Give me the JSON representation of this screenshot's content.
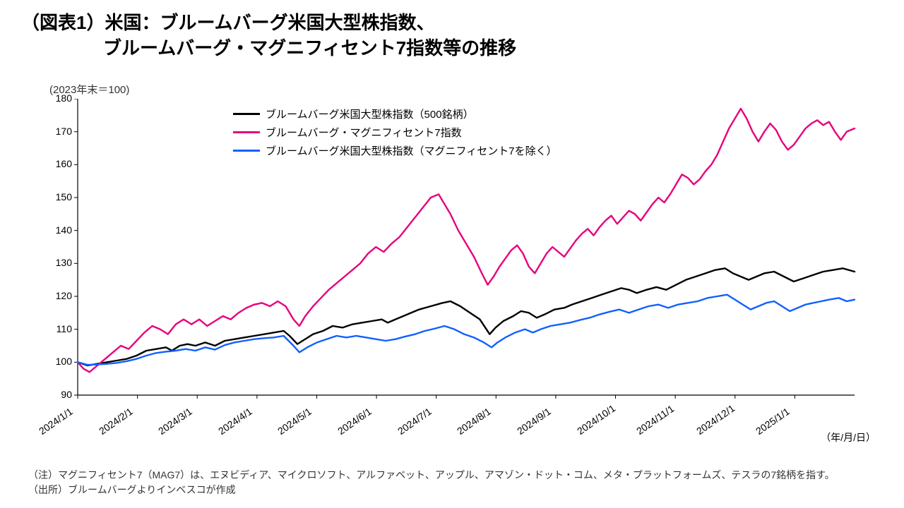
{
  "title_line1": "（図表1）米国：ブルームバーグ米国大型株指数、",
  "title_line2": "ブルームバーグ・マグニフィセント7指数等の推移",
  "normalization_note": "(2023年末＝100)",
  "x_unit_label": "（年/月/日）",
  "footnote_line1": "（注）マグニフィセント7（MAG7）は、エヌビディア、マイクロソフト、アルファベット、アップル、アマゾン・ドット・コム、メタ・プラットフォームズ、テスラの7銘柄を指す。",
  "footnote_line2": "（出所）ブルームバーグよりインベスコが作成",
  "legend": {
    "series1": "ブルームバーグ米国大型株指数（500銘柄）",
    "series2": "ブルームバーグ・マグニフィセント7指数",
    "series3": "ブルームバーグ米国大型株指数（マグニフィセント7を除く）"
  },
  "chart": {
    "type": "line",
    "background_color": "#ffffff",
    "axis_color": "#000000",
    "grid": false,
    "title_fontsize": 26,
    "label_fontsize": 14,
    "legend_fontsize": 15,
    "line_width": 2.4,
    "ylim": [
      90,
      180
    ],
    "ytick_step": 10,
    "yticks": [
      90,
      100,
      110,
      120,
      130,
      140,
      150,
      160,
      170,
      180
    ],
    "xticks": [
      "2024/1/1",
      "2024/2/1",
      "2024/3/1",
      "2024/4/1",
      "2024/5/1",
      "2024/6/1",
      "2024/7/1",
      "2024/8/1",
      "2024/9/1",
      "2024/10/1",
      "2024/11/1",
      "2024/12/1",
      "2025/1/1"
    ],
    "xtick_rotation_deg": -35,
    "x_index_range": [
      0,
      396
    ],
    "series": [
      {
        "key": "series1",
        "color": "#000000",
        "data": [
          [
            0,
            100.0
          ],
          [
            5,
            99.0
          ],
          [
            10,
            99.5
          ],
          [
            15,
            100.0
          ],
          [
            20,
            100.5
          ],
          [
            25,
            101.0
          ],
          [
            30,
            102.0
          ],
          [
            35,
            103.5
          ],
          [
            40,
            104.0
          ],
          [
            45,
            104.5
          ],
          [
            48,
            103.5
          ],
          [
            52,
            105.0
          ],
          [
            56,
            105.5
          ],
          [
            60,
            105.0
          ],
          [
            65,
            106.0
          ],
          [
            70,
            105.0
          ],
          [
            75,
            106.5
          ],
          [
            80,
            107.0
          ],
          [
            85,
            107.5
          ],
          [
            90,
            108.0
          ],
          [
            95,
            108.5
          ],
          [
            100,
            109.0
          ],
          [
            105,
            109.5
          ],
          [
            108,
            108.0
          ],
          [
            112,
            105.5
          ],
          [
            116,
            107.0
          ],
          [
            120,
            108.5
          ],
          [
            125,
            109.5
          ],
          [
            130,
            111.0
          ],
          [
            135,
            110.5
          ],
          [
            140,
            111.5
          ],
          [
            145,
            112.0
          ],
          [
            150,
            112.5
          ],
          [
            155,
            113.0
          ],
          [
            158,
            112.0
          ],
          [
            162,
            113.0
          ],
          [
            168,
            114.5
          ],
          [
            174,
            116.0
          ],
          [
            180,
            117.0
          ],
          [
            186,
            118.0
          ],
          [
            190,
            118.5
          ],
          [
            195,
            117.0
          ],
          [
            200,
            115.0
          ],
          [
            205,
            113.0
          ],
          [
            210,
            108.5
          ],
          [
            213,
            110.5
          ],
          [
            217,
            112.5
          ],
          [
            222,
            114.0
          ],
          [
            226,
            115.5
          ],
          [
            230,
            115.0
          ],
          [
            234,
            113.5
          ],
          [
            238,
            114.5
          ],
          [
            243,
            116.0
          ],
          [
            248,
            116.5
          ],
          [
            252,
            117.5
          ],
          [
            257,
            118.5
          ],
          [
            262,
            119.5
          ],
          [
            267,
            120.5
          ],
          [
            272,
            121.5
          ],
          [
            277,
            122.5
          ],
          [
            281,
            122.0
          ],
          [
            285,
            121.0
          ],
          [
            290,
            122.0
          ],
          [
            295,
            122.8
          ],
          [
            300,
            122.0
          ],
          [
            305,
            123.5
          ],
          [
            310,
            125.0
          ],
          [
            315,
            126.0
          ],
          [
            320,
            127.0
          ],
          [
            325,
            128.0
          ],
          [
            330,
            128.5
          ],
          [
            334,
            127.0
          ],
          [
            338,
            126.0
          ],
          [
            342,
            125.0
          ],
          [
            346,
            126.0
          ],
          [
            350,
            127.0
          ],
          [
            355,
            127.5
          ],
          [
            360,
            126.0
          ],
          [
            365,
            124.5
          ],
          [
            370,
            125.5
          ],
          [
            375,
            126.5
          ],
          [
            380,
            127.5
          ],
          [
            385,
            128.0
          ],
          [
            390,
            128.5
          ],
          [
            396,
            127.5
          ]
        ]
      },
      {
        "key": "series2",
        "color": "#e6007e",
        "data": [
          [
            0,
            100.0
          ],
          [
            3,
            98.0
          ],
          [
            6,
            97.0
          ],
          [
            10,
            99.0
          ],
          [
            14,
            101.0
          ],
          [
            18,
            103.0
          ],
          [
            22,
            105.0
          ],
          [
            26,
            104.0
          ],
          [
            30,
            106.5
          ],
          [
            34,
            109.0
          ],
          [
            38,
            111.0
          ],
          [
            42,
            110.0
          ],
          [
            46,
            108.5
          ],
          [
            50,
            111.5
          ],
          [
            54,
            113.0
          ],
          [
            58,
            111.5
          ],
          [
            62,
            113.0
          ],
          [
            66,
            111.0
          ],
          [
            70,
            112.5
          ],
          [
            74,
            114.0
          ],
          [
            78,
            113.0
          ],
          [
            82,
            115.0
          ],
          [
            86,
            116.5
          ],
          [
            90,
            117.5
          ],
          [
            94,
            118.0
          ],
          [
            98,
            117.0
          ],
          [
            102,
            118.5
          ],
          [
            106,
            117.0
          ],
          [
            110,
            113.0
          ],
          [
            113,
            111.0
          ],
          [
            116,
            114.0
          ],
          [
            120,
            117.0
          ],
          [
            124,
            119.5
          ],
          [
            128,
            122.0
          ],
          [
            132,
            124.0
          ],
          [
            136,
            126.0
          ],
          [
            140,
            128.0
          ],
          [
            144,
            130.0
          ],
          [
            148,
            133.0
          ],
          [
            152,
            135.0
          ],
          [
            156,
            133.5
          ],
          [
            160,
            136.0
          ],
          [
            164,
            138.0
          ],
          [
            168,
            141.0
          ],
          [
            172,
            144.0
          ],
          [
            176,
            147.0
          ],
          [
            180,
            150.0
          ],
          [
            184,
            151.0
          ],
          [
            187,
            148.0
          ],
          [
            190,
            145.0
          ],
          [
            194,
            140.0
          ],
          [
            198,
            136.0
          ],
          [
            202,
            132.0
          ],
          [
            206,
            127.0
          ],
          [
            209,
            123.5
          ],
          [
            212,
            126.0
          ],
          [
            215,
            129.0
          ],
          [
            218,
            131.5
          ],
          [
            221,
            134.0
          ],
          [
            224,
            135.5
          ],
          [
            227,
            133.0
          ],
          [
            230,
            129.0
          ],
          [
            233,
            127.0
          ],
          [
            236,
            130.0
          ],
          [
            239,
            133.0
          ],
          [
            242,
            135.0
          ],
          [
            245,
            133.5
          ],
          [
            248,
            132.0
          ],
          [
            251,
            134.5
          ],
          [
            254,
            137.0
          ],
          [
            257,
            139.0
          ],
          [
            260,
            140.5
          ],
          [
            263,
            138.5
          ],
          [
            266,
            141.0
          ],
          [
            269,
            143.0
          ],
          [
            272,
            144.5
          ],
          [
            275,
            142.0
          ],
          [
            278,
            144.0
          ],
          [
            281,
            146.0
          ],
          [
            284,
            145.0
          ],
          [
            287,
            143.0
          ],
          [
            290,
            145.5
          ],
          [
            293,
            148.0
          ],
          [
            296,
            150.0
          ],
          [
            299,
            148.5
          ],
          [
            302,
            151.0
          ],
          [
            305,
            154.0
          ],
          [
            308,
            157.0
          ],
          [
            311,
            156.0
          ],
          [
            314,
            154.0
          ],
          [
            317,
            155.5
          ],
          [
            320,
            158.0
          ],
          [
            323,
            160.0
          ],
          [
            326,
            163.0
          ],
          [
            329,
            167.0
          ],
          [
            332,
            171.0
          ],
          [
            335,
            174.0
          ],
          [
            338,
            177.0
          ],
          [
            341,
            174.0
          ],
          [
            344,
            170.0
          ],
          [
            347,
            167.0
          ],
          [
            350,
            170.0
          ],
          [
            353,
            172.5
          ],
          [
            356,
            170.5
          ],
          [
            359,
            167.0
          ],
          [
            362,
            164.5
          ],
          [
            365,
            166.0
          ],
          [
            368,
            168.5
          ],
          [
            371,
            171.0
          ],
          [
            374,
            172.5
          ],
          [
            377,
            173.5
          ],
          [
            380,
            172.0
          ],
          [
            383,
            173.0
          ],
          [
            386,
            170.0
          ],
          [
            389,
            167.5
          ],
          [
            392,
            170.0
          ],
          [
            396,
            171.0
          ]
        ]
      },
      {
        "key": "series3",
        "color": "#1060ff",
        "data": [
          [
            0,
            100.0
          ],
          [
            5,
            99.2
          ],
          [
            10,
            99.3
          ],
          [
            15,
            99.5
          ],
          [
            20,
            99.8
          ],
          [
            25,
            100.3
          ],
          [
            30,
            101.0
          ],
          [
            35,
            102.0
          ],
          [
            40,
            102.8
          ],
          [
            45,
            103.2
          ],
          [
            50,
            103.5
          ],
          [
            55,
            104.0
          ],
          [
            60,
            103.5
          ],
          [
            65,
            104.5
          ],
          [
            70,
            103.8
          ],
          [
            75,
            105.2
          ],
          [
            80,
            106.0
          ],
          [
            85,
            106.5
          ],
          [
            90,
            107.0
          ],
          [
            95,
            107.3
          ],
          [
            100,
            107.5
          ],
          [
            105,
            108.0
          ],
          [
            110,
            105.0
          ],
          [
            113,
            103.0
          ],
          [
            117,
            104.5
          ],
          [
            122,
            106.0
          ],
          [
            127,
            107.0
          ],
          [
            132,
            108.0
          ],
          [
            137,
            107.5
          ],
          [
            142,
            108.0
          ],
          [
            147,
            107.5
          ],
          [
            152,
            107.0
          ],
          [
            157,
            106.5
          ],
          [
            162,
            107.0
          ],
          [
            167,
            107.8
          ],
          [
            172,
            108.5
          ],
          [
            177,
            109.5
          ],
          [
            182,
            110.2
          ],
          [
            187,
            111.0
          ],
          [
            192,
            110.0
          ],
          [
            197,
            108.5
          ],
          [
            202,
            107.5
          ],
          [
            207,
            106.0
          ],
          [
            211,
            104.5
          ],
          [
            214,
            106.0
          ],
          [
            218,
            107.5
          ],
          [
            223,
            109.0
          ],
          [
            228,
            110.0
          ],
          [
            232,
            109.0
          ],
          [
            236,
            110.0
          ],
          [
            241,
            111.0
          ],
          [
            246,
            111.5
          ],
          [
            251,
            112.0
          ],
          [
            256,
            112.8
          ],
          [
            261,
            113.5
          ],
          [
            266,
            114.5
          ],
          [
            271,
            115.3
          ],
          [
            276,
            116.0
          ],
          [
            281,
            115.0
          ],
          [
            286,
            116.0
          ],
          [
            291,
            117.0
          ],
          [
            296,
            117.5
          ],
          [
            301,
            116.5
          ],
          [
            306,
            117.5
          ],
          [
            311,
            118.0
          ],
          [
            316,
            118.5
          ],
          [
            321,
            119.5
          ],
          [
            326,
            120.0
          ],
          [
            331,
            120.5
          ],
          [
            335,
            119.0
          ],
          [
            339,
            117.5
          ],
          [
            343,
            116.0
          ],
          [
            347,
            117.0
          ],
          [
            351,
            118.0
          ],
          [
            355,
            118.5
          ],
          [
            359,
            117.0
          ],
          [
            363,
            115.5
          ],
          [
            367,
            116.5
          ],
          [
            371,
            117.5
          ],
          [
            375,
            118.0
          ],
          [
            379,
            118.5
          ],
          [
            383,
            119.0
          ],
          [
            388,
            119.5
          ],
          [
            392,
            118.5
          ],
          [
            396,
            119.0
          ]
        ]
      }
    ]
  }
}
